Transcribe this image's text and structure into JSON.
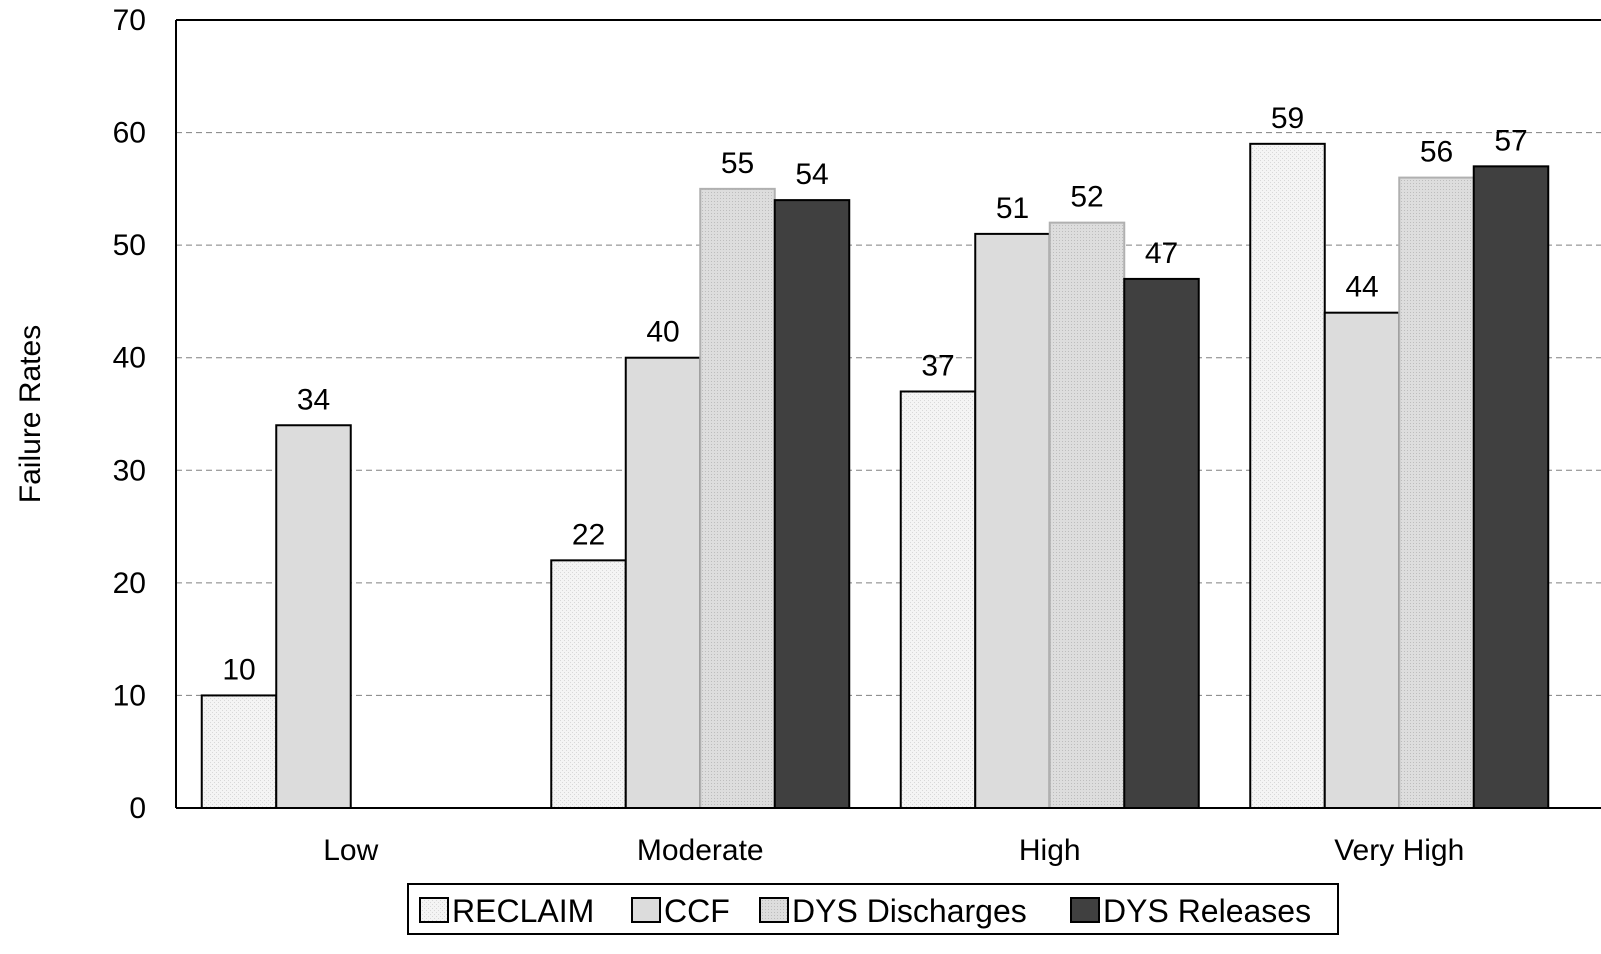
{
  "chart_data": {
    "type": "bar",
    "ylabel": "Failure Rates",
    "xlabel": "",
    "ylim": [
      0,
      70
    ],
    "yticks": [
      0,
      10,
      20,
      30,
      40,
      50,
      60,
      70
    ],
    "grid": "horizontal dashed",
    "legend_position": "bottom",
    "categories": [
      "Low",
      "Moderate",
      "High",
      "Very High"
    ],
    "series": [
      {
        "name": "RECLAIM",
        "values": [
          10,
          22,
          37,
          59
        ],
        "color": "#f4f4f4",
        "stroke": "#000000"
      },
      {
        "name": "CCF",
        "values": [
          34,
          40,
          51,
          44
        ],
        "color": "#dcdcdc",
        "stroke": "#000000"
      },
      {
        "name": "DYS Discharges",
        "values": [
          null,
          55,
          52,
          56
        ],
        "color": "#d4d4d4",
        "stroke": "#b0b0b0"
      },
      {
        "name": "DYS Releases",
        "values": [
          null,
          54,
          47,
          57
        ],
        "color": "#404040",
        "stroke": "#000000"
      }
    ]
  }
}
